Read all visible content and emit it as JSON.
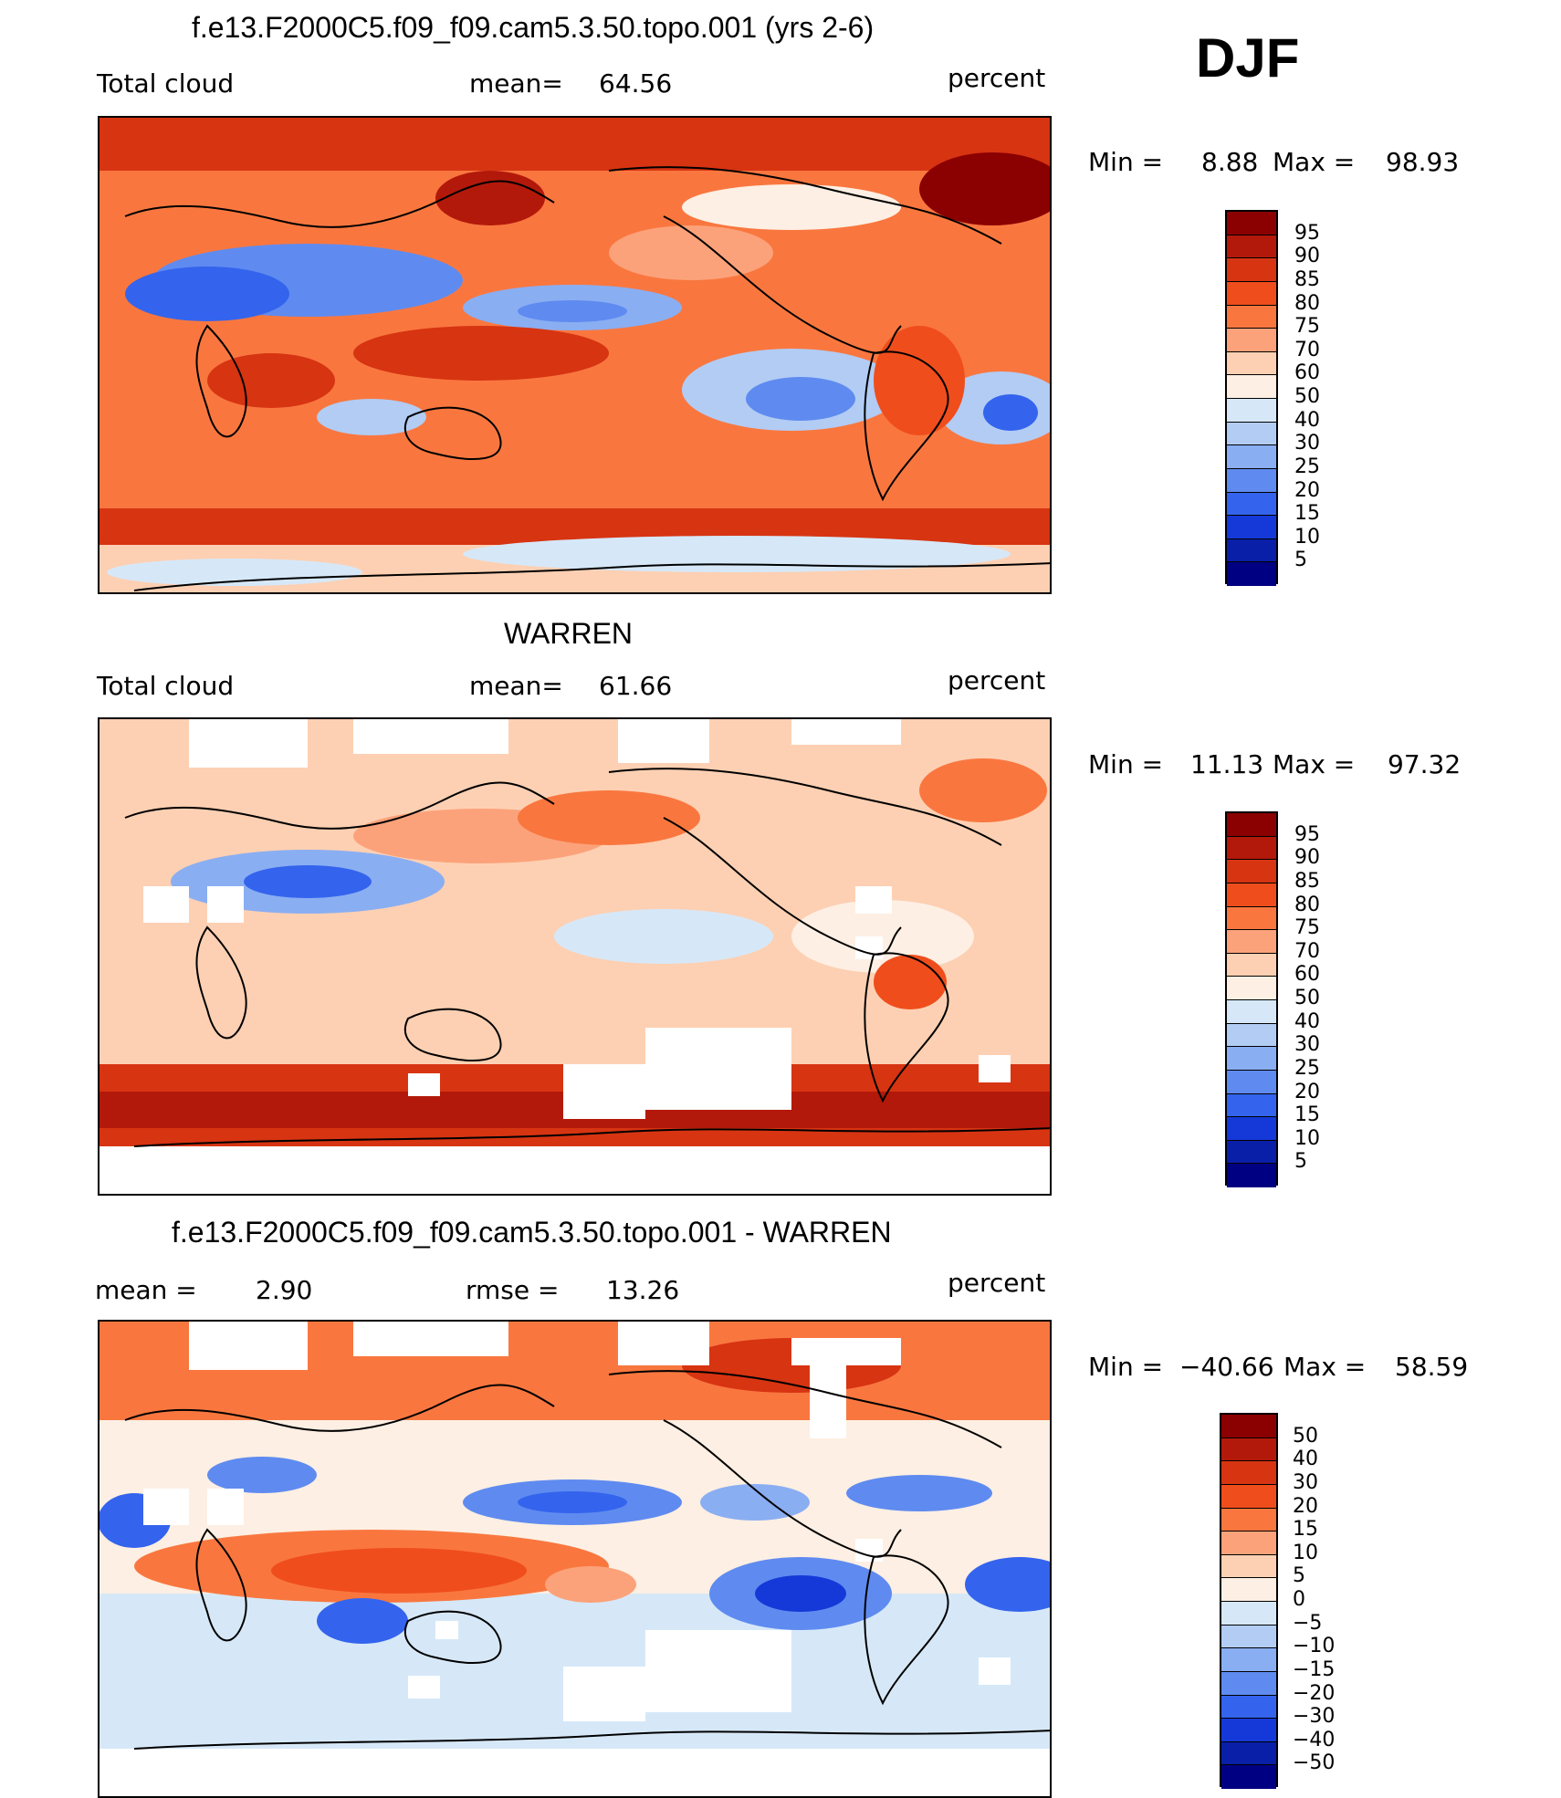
{
  "season": "DJF",
  "panels": [
    {
      "title": "f.e13.F2000C5.f09_f09.cam5.3.50.topo.001 (yrs 2-6)",
      "left_label": "Total cloud",
      "stat1_label": "mean=",
      "stat1_value": "64.56",
      "stat2_label": "",
      "stat2_value": "",
      "units": "percent",
      "min_label": "Min =",
      "min_value": "8.88",
      "max_label": "Max =",
      "max_value": "98.93",
      "colorbar_labels": [
        "95",
        "90",
        "85",
        "80",
        "75",
        "70",
        "60",
        "50",
        "40",
        "30",
        "25",
        "20",
        "15",
        "10",
        "5"
      ],
      "colorbar_colors": [
        "#8b0000",
        "#b3190a",
        "#d73412",
        "#f04d1c",
        "#f9773f",
        "#fca27a",
        "#fdd0b3",
        "#fdefe3",
        "#d6e8f8",
        "#b2ccf4",
        "#8aaef2",
        "#5f8bf0",
        "#3464ed",
        "#1539d8",
        "#0a1fa8",
        "#000082"
      ]
    },
    {
      "title": "WARREN",
      "left_label": "Total cloud",
      "stat1_label": "mean=",
      "stat1_value": "61.66",
      "stat2_label": "",
      "stat2_value": "",
      "units": "percent",
      "min_label": "Min =",
      "min_value": "11.13",
      "max_label": "Max =",
      "max_value": "97.32",
      "colorbar_labels": [
        "95",
        "90",
        "85",
        "80",
        "75",
        "70",
        "60",
        "50",
        "40",
        "30",
        "25",
        "20",
        "15",
        "10",
        "5"
      ],
      "colorbar_colors": [
        "#8b0000",
        "#b3190a",
        "#d73412",
        "#f04d1c",
        "#f9773f",
        "#fca27a",
        "#fdd0b3",
        "#fdefe3",
        "#d6e8f8",
        "#b2ccf4",
        "#8aaef2",
        "#5f8bf0",
        "#3464ed",
        "#1539d8",
        "#0a1fa8",
        "#000082"
      ]
    },
    {
      "title": "f.e13.F2000C5.f09_f09.cam5.3.50.topo.001 - WARREN",
      "left_label": "mean =",
      "stat1_label": "",
      "stat1_value": "2.90",
      "stat2_label": "rmse =",
      "stat2_value": "13.26",
      "units": "percent",
      "min_label": "Min =",
      "min_value": "−40.66",
      "max_label": "Max =",
      "max_value": "58.59",
      "colorbar_labels": [
        "50",
        "40",
        "30",
        "20",
        "15",
        "10",
        "5",
        "0",
        "−5",
        "−10",
        "−15",
        "−20",
        "−30",
        "−40",
        "−50"
      ],
      "colorbar_colors": [
        "#8b0000",
        "#b3190a",
        "#d73412",
        "#f04d1c",
        "#f9773f",
        "#fca27a",
        "#fdd0b3",
        "#fdefe3",
        "#d6e8f8",
        "#b2ccf4",
        "#8aaef2",
        "#5f8bf0",
        "#3464ed",
        "#1539d8",
        "#0a1fa8",
        "#000082"
      ]
    }
  ],
  "chart_data": [
    {
      "type": "heatmap",
      "title": "f.e13.F2000C5.f09_f09.cam5.3.50.topo.001 (yrs 2-6)",
      "variable": "Total cloud",
      "units": "percent",
      "mean": 64.56,
      "min": 8.88,
      "max": 98.93,
      "contour_levels": [
        5,
        10,
        15,
        20,
        25,
        30,
        40,
        50,
        60,
        70,
        75,
        80,
        85,
        90,
        95
      ]
    },
    {
      "type": "heatmap",
      "title": "WARREN",
      "variable": "Total cloud",
      "units": "percent",
      "mean": 61.66,
      "min": 11.13,
      "max": 97.32,
      "contour_levels": [
        5,
        10,
        15,
        20,
        25,
        30,
        40,
        50,
        60,
        70,
        75,
        80,
        85,
        90,
        95
      ]
    },
    {
      "type": "heatmap",
      "title": "f.e13.F2000C5.f09_f09.cam5.3.50.topo.001 - WARREN",
      "units": "percent",
      "mean": 2.9,
      "rmse": 13.26,
      "min": -40.66,
      "max": 58.59,
      "contour_levels": [
        -50,
        -40,
        -30,
        -20,
        -15,
        -10,
        -5,
        0,
        5,
        10,
        15,
        20,
        30,
        40,
        50
      ]
    }
  ]
}
